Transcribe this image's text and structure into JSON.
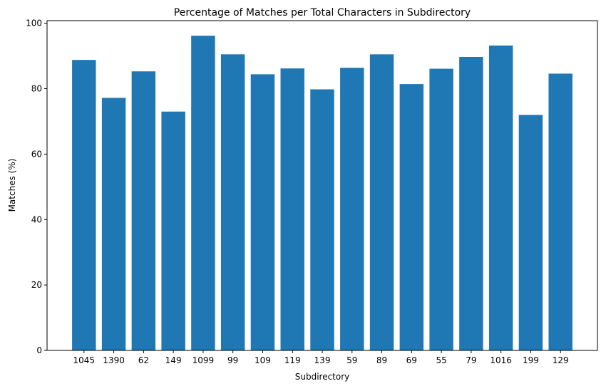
{
  "chart_data": {
    "type": "bar",
    "title": "Percentage of Matches per Total Characters in Subdirectory",
    "xlabel": "Subdirectory",
    "ylabel": "Matches (%)",
    "categories": [
      "1045",
      "1390",
      "62",
      "149",
      "1099",
      "99",
      "109",
      "119",
      "139",
      "59",
      "89",
      "69",
      "55",
      "79",
      "1016",
      "199",
      "129"
    ],
    "values": [
      88.8,
      77.2,
      85.3,
      73.0,
      96.2,
      90.5,
      84.4,
      86.2,
      79.8,
      86.4,
      90.5,
      81.4,
      86.1,
      89.7,
      93.2,
      72.0,
      84.6
    ],
    "ylim": [
      0,
      100.8
    ],
    "yticks": [
      0,
      20,
      40,
      60,
      80,
      100
    ],
    "ytick_labels": [
      "0",
      "20",
      "40",
      "60",
      "80",
      "100"
    ],
    "bar_color": "#1f77b4",
    "grid": false,
    "legend": false
  }
}
